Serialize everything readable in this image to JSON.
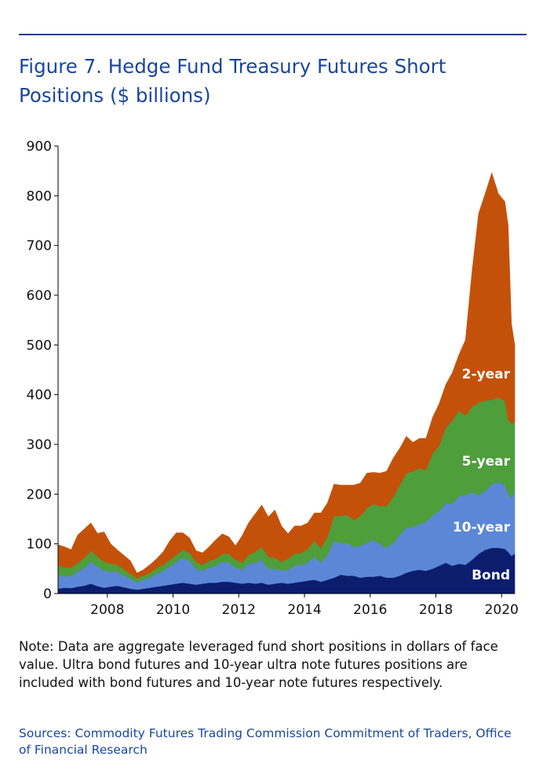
{
  "figure": {
    "title": "Figure 7. Hedge Fund Treasury Futures Short Positions ($ billions)",
    "note": "Note: Data are aggregate leveraged fund short positions in dollars of face value. Ultra bond futures and 10-year ultra note futures positions are included with bond futures and 10-year note futures respectively.",
    "sources": "Sources: Commodity Futures Trading Commission Commitment of Traders, Office of Financial Research"
  },
  "chart_data": {
    "type": "area",
    "stacked": true,
    "x_unit": "year",
    "xlim": [
      2006.5,
      2020.4
    ],
    "ylim": [
      0,
      900
    ],
    "yticks": [
      "0",
      "100",
      "200",
      "300",
      "400",
      "500",
      "600",
      "700",
      "800",
      "900"
    ],
    "xticks": [
      "2008",
      "2010",
      "2012",
      "2014",
      "2016",
      "2018",
      "2020"
    ],
    "grid": false,
    "legend": "inline labels on right",
    "x": [
      2006.5,
      2006.7,
      2006.9,
      2007.1,
      2007.3,
      2007.5,
      2007.7,
      2007.9,
      2008.1,
      2008.3,
      2008.5,
      2008.7,
      2008.9,
      2009.1,
      2009.3,
      2009.5,
      2009.7,
      2009.9,
      2010.1,
      2010.3,
      2010.5,
      2010.7,
      2010.9,
      2011.1,
      2011.3,
      2011.5,
      2011.7,
      2011.9,
      2012.1,
      2012.3,
      2012.5,
      2012.7,
      2012.9,
      2013.1,
      2013.3,
      2013.5,
      2013.7,
      2013.9,
      2014.1,
      2014.3,
      2014.5,
      2014.7,
      2014.9,
      2015.1,
      2015.3,
      2015.5,
      2015.7,
      2015.9,
      2016.1,
      2016.3,
      2016.5,
      2016.7,
      2016.9,
      2017.1,
      2017.3,
      2017.5,
      2017.7,
      2017.9,
      2018.1,
      2018.3,
      2018.5,
      2018.7,
      2018.9,
      2019.1,
      2019.3,
      2019.5,
      2019.7,
      2019.9,
      2020.1,
      2020.2,
      2020.3,
      2020.4
    ],
    "series": [
      {
        "name": "Bond",
        "color": "#0d1d6e",
        "values": [
          10,
          12,
          11,
          14,
          16,
          20,
          15,
          12,
          14,
          16,
          13,
          10,
          8,
          10,
          12,
          14,
          16,
          18,
          20,
          22,
          20,
          18,
          20,
          22,
          22,
          24,
          24,
          22,
          20,
          22,
          20,
          22,
          18,
          20,
          22,
          20,
          22,
          24,
          26,
          28,
          24,
          28,
          32,
          38,
          36,
          36,
          32,
          34,
          34,
          36,
          32,
          32,
          36,
          42,
          46,
          48,
          46,
          50,
          56,
          62,
          56,
          60,
          58,
          68,
          80,
          88,
          92,
          92,
          90,
          84,
          76,
          80
        ]
      },
      {
        "name": "10-year",
        "color": "#5b87d6",
        "values": [
          28,
          22,
          25,
          30,
          36,
          44,
          40,
          34,
          30,
          28,
          24,
          20,
          15,
          18,
          20,
          26,
          30,
          36,
          44,
          50,
          46,
          32,
          26,
          30,
          34,
          40,
          38,
          30,
          28,
          38,
          42,
          46,
          32,
          30,
          24,
          28,
          34,
          34,
          36,
          46,
          38,
          50,
          74,
          64,
          66,
          58,
          64,
          68,
          74,
          64,
          60,
          70,
          82,
          90,
          88,
          92,
          98,
          108,
          110,
          120,
          124,
          136,
          140,
          136,
          118,
          118,
          128,
          132,
          128,
          118,
          116,
          128
        ]
      },
      {
        "name": "5-year",
        "color": "#4e9e3c",
        "values": [
          20,
          18,
          16,
          18,
          20,
          22,
          20,
          18,
          16,
          14,
          12,
          10,
          8,
          8,
          10,
          12,
          12,
          14,
          14,
          16,
          16,
          14,
          12,
          14,
          14,
          16,
          18,
          16,
          14,
          18,
          22,
          26,
          24,
          22,
          18,
          22,
          24,
          24,
          28,
          32,
          30,
          36,
          50,
          54,
          56,
          54,
          60,
          70,
          72,
          76,
          84,
          92,
          100,
          110,
          112,
          112,
          104,
          124,
          132,
          152,
          168,
          172,
          160,
          172,
          186,
          182,
          170,
          170,
          170,
          148,
          150,
          136
        ]
      },
      {
        "name": "2-year",
        "color": "#c4510a",
        "values": [
          40,
          42,
          36,
          56,
          58,
          56,
          46,
          60,
          40,
          30,
          28,
          26,
          10,
          12,
          16,
          18,
          26,
          38,
          44,
          34,
          30,
          22,
          24,
          28,
          38,
          40,
          34,
          28,
          54,
          64,
          76,
          84,
          80,
          96,
          72,
          50,
          56,
          54,
          52,
          56,
          70,
          68,
          64,
          62,
          60,
          70,
          66,
          70,
          64,
          66,
          70,
          78,
          74,
          74,
          58,
          60,
          64,
          72,
          84,
          86,
          96,
          112,
          152,
          272,
          380,
          416,
          456,
          410,
          400,
          390,
          200,
          156
        ]
      }
    ]
  },
  "colors": {
    "title": "#1a469c",
    "rule": "#1f3f8f",
    "label": "#ffffff",
    "axis": "#000000"
  }
}
